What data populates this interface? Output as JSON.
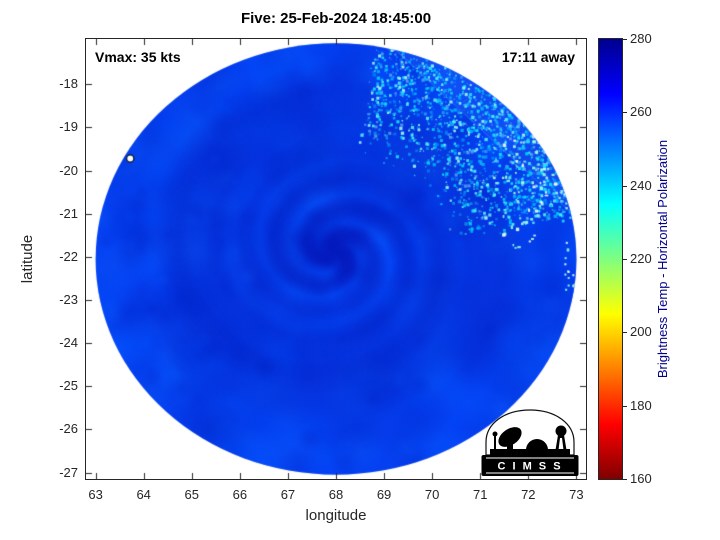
{
  "chart_data": {
    "type": "heatmap",
    "title": "Five: 25-Feb-2024 18:45:00",
    "xlabel": "longitude",
    "ylabel": "latitude",
    "xlim": [
      62.8,
      73.2
    ],
    "ylim": [
      -27.15,
      -16.95
    ],
    "x_ticks": [
      63,
      64,
      65,
      66,
      67,
      68,
      69,
      70,
      71,
      72,
      73
    ],
    "y_ticks": [
      -18,
      -19,
      -20,
      -21,
      -22,
      -23,
      -24,
      -25,
      -26,
      -27
    ],
    "grid": false,
    "annotations": {
      "vmax": "Vmax: 35 kts",
      "eta": "17:11 away"
    },
    "swath": {
      "center_lon": 68.0,
      "center_lat": -22.05,
      "radius_deg": 5.0,
      "marker": {
        "lon": 63.72,
        "lat": -19.72,
        "style": "small white circle outlined in black"
      },
      "description": "Circular microwave swath of Tropical Cyclone Five; brightness temperatures mostly 250-270 K (deep blue) with darker blue spiral rainbands around a center near 68E 22S; scattered 230-245 K cyan speckles in the northeast quadrant along a straight swath seam; a few bright near-white speckles at the NE and E edges"
    },
    "colorbar": {
      "label": "Brightness Temp - Horizontal Polarization",
      "min": 160,
      "max": 280,
      "ticks": [
        160,
        180,
        200,
        220,
        240,
        260,
        280
      ],
      "colormap": "jet reversed (280 K dark blue at top, 160 K dark red at bottom)",
      "stops": [
        {
          "t": 280,
          "color": "#00008f"
        },
        {
          "t": 265,
          "color": "#0000ff"
        },
        {
          "t": 235,
          "color": "#00ffff"
        },
        {
          "t": 205,
          "color": "#ffff00"
        },
        {
          "t": 175,
          "color": "#ff0000"
        },
        {
          "t": 160,
          "color": "#800000"
        }
      ]
    },
    "palette": {
      "base": "#0540f0",
      "mottle": [
        "#0026cc",
        "#0030dd",
        "#0046ff",
        "#0052ff",
        "#0a60ff"
      ],
      "band_dark": "#0016b9",
      "wedge": "#2a6eff",
      "speckles": [
        "#00b4ff",
        "#00d2ff",
        "#18e4ff",
        "#59f0ff",
        "#9ef8ff"
      ],
      "bright": [
        "#b0ffd0",
        "#eaffff",
        "#8fffe8"
      ]
    },
    "style": {
      "axis_color": "#262626",
      "title_color": "#000000",
      "colorbar_label_color": "#00008b"
    }
  },
  "logo": {
    "name": "CIMSS",
    "text": "C I M S S"
  }
}
